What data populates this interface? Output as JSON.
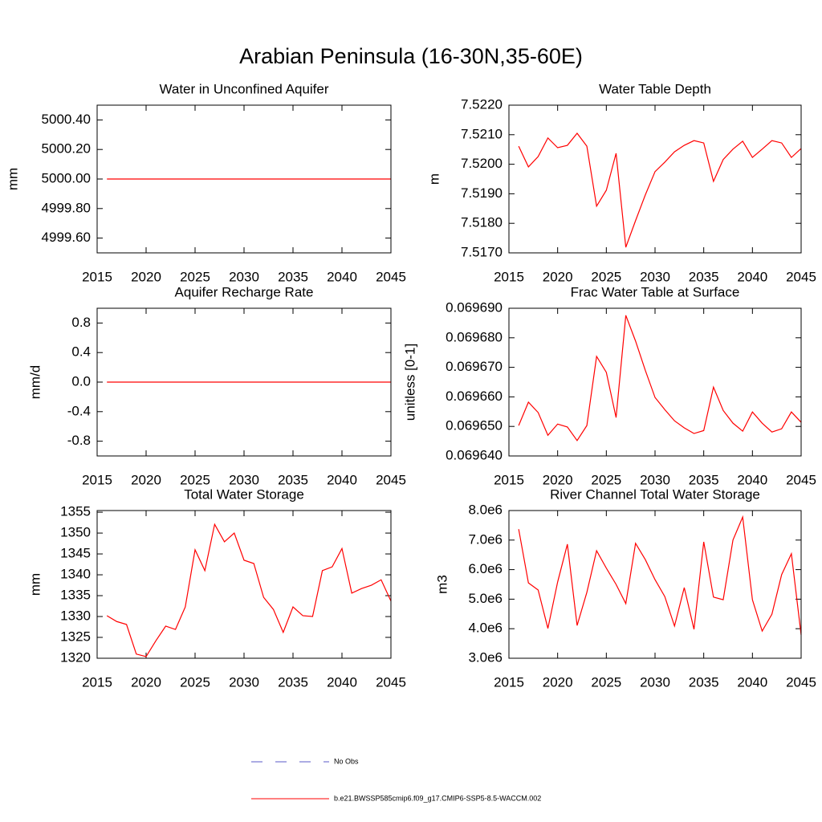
{
  "title": "Arabian Peninsula (16-30N,35-60E)",
  "legend": [
    {
      "label": "No Obs",
      "color": "#5a5ac8",
      "dashed": true
    },
    {
      "label": "b.e21.BWSSP585cmip6.f09_g17.CMIP6-SSP5-8.5-WACCM.002",
      "color": "#ff0000",
      "dashed": false
    }
  ],
  "chart_data": [
    {
      "type": "line",
      "title": "Water in Unconfined Aquifer",
      "y_label": "mm",
      "color": "#ff0000",
      "x": [
        2016,
        2017,
        2018,
        2019,
        2020,
        2021,
        2022,
        2023,
        2024,
        2025,
        2026,
        2027,
        2028,
        2029,
        2030,
        2031,
        2032,
        2033,
        2034,
        2035,
        2036,
        2037,
        2038,
        2039,
        2040,
        2041,
        2042,
        2043,
        2044,
        2045
      ],
      "values": [
        5000,
        5000,
        5000,
        5000,
        5000,
        5000,
        5000,
        5000,
        5000,
        5000,
        5000,
        5000,
        5000,
        5000,
        5000,
        5000,
        5000,
        5000,
        5000,
        5000,
        5000,
        5000,
        5000,
        5000,
        5000,
        5000,
        5000,
        5000,
        5000,
        5000
      ],
      "xlim": [
        2015,
        2045
      ],
      "xticks": [
        2015,
        2020,
        2025,
        2030,
        2035,
        2040,
        2045
      ],
      "ylim": [
        4999.5,
        5000.5
      ],
      "yticks": [
        {
          "value": 4999.6,
          "label": "4999.60"
        },
        {
          "value": 4999.8,
          "label": "4999.80"
        },
        {
          "value": 5000,
          "label": "5000.00"
        },
        {
          "value": 5000.2,
          "label": "5000.20"
        },
        {
          "value": 5000.4,
          "label": "5000.40"
        }
      ]
    },
    {
      "type": "line",
      "title": "Water Table Depth",
      "y_label": "m",
      "color": "#ff0000",
      "x": [
        2016,
        2017,
        2018,
        2019,
        2020,
        2021,
        2022,
        2023,
        2024,
        2025,
        2026,
        2027,
        2028,
        2029,
        2030,
        2031,
        2032,
        2033,
        2034,
        2035,
        2036,
        2037,
        2038,
        2039,
        2040,
        2041,
        2042,
        2043,
        2044,
        2045
      ],
      "values": [
        7.52061,
        7.51991,
        7.52026,
        7.52089,
        7.52056,
        7.52064,
        7.52105,
        7.52061,
        7.51858,
        7.51912,
        7.52037,
        7.51719,
        7.51809,
        7.51896,
        7.51975,
        7.52007,
        7.52042,
        7.52064,
        7.5208,
        7.52072,
        7.51942,
        7.52016,
        7.52051,
        7.52078,
        7.52023,
        7.52051,
        7.5208,
        7.52072,
        7.52023,
        7.52053
      ],
      "xlim": [
        2015,
        2045
      ],
      "xticks": [
        2015,
        2020,
        2025,
        2030,
        2035,
        2040,
        2045
      ],
      "ylim": [
        7.517,
        7.522
      ],
      "yticks": [
        {
          "value": 7.517,
          "label": "7.5170"
        },
        {
          "value": 7.518,
          "label": "7.5180"
        },
        {
          "value": 7.519,
          "label": "7.5190"
        },
        {
          "value": 7.52,
          "label": "7.5200"
        },
        {
          "value": 7.521,
          "label": "7.5210"
        },
        {
          "value": 7.522,
          "label": "7.5220"
        }
      ]
    },
    {
      "type": "line",
      "title": "Aquifer Recharge Rate",
      "y_label": "mm/d",
      "color": "#ff0000",
      "x": [
        2016,
        2017,
        2018,
        2019,
        2020,
        2021,
        2022,
        2023,
        2024,
        2025,
        2026,
        2027,
        2028,
        2029,
        2030,
        2031,
        2032,
        2033,
        2034,
        2035,
        2036,
        2037,
        2038,
        2039,
        2040,
        2041,
        2042,
        2043,
        2044,
        2045
      ],
      "values": [
        0,
        0,
        0,
        0,
        0,
        0,
        0,
        0,
        0,
        0,
        0,
        0,
        0,
        0,
        0,
        0,
        0,
        0,
        0,
        0,
        0,
        0,
        0,
        0,
        0,
        0,
        0,
        0,
        0,
        0
      ],
      "xlim": [
        2015,
        2045
      ],
      "xticks": [
        2015,
        2020,
        2025,
        2030,
        2035,
        2040,
        2045
      ],
      "ylim": [
        -1,
        1
      ],
      "yticks": [
        -0.8,
        -0.4,
        {
          "value": 0,
          "label": "0.0"
        },
        0.4,
        0.8
      ]
    },
    {
      "type": "line",
      "title": "Frac Water Table at Surface",
      "y_label": "unitless [0-1]",
      "color": "#ff0000",
      "x": [
        2016,
        2017,
        2018,
        2019,
        2020,
        2021,
        2022,
        2023,
        2024,
        2025,
        2026,
        2027,
        2028,
        2029,
        2030,
        2031,
        2032,
        2033,
        2034,
        2035,
        2036,
        2037,
        2038,
        2039,
        2040,
        2041,
        2042,
        2043,
        2044,
        2045
      ],
      "values": [
        0.0696503,
        0.0696582,
        0.0696547,
        0.069647,
        0.0696508,
        0.0696498,
        0.0696452,
        0.0696503,
        0.0696737,
        0.0696683,
        0.069653,
        0.0696876,
        0.0696789,
        0.069669,
        0.0696598,
        0.0696557,
        0.0696519,
        0.0696495,
        0.0696476,
        0.0696486,
        0.0696633,
        0.0696554,
        0.0696511,
        0.0696484,
        0.0696549,
        0.0696511,
        0.0696481,
        0.0696492,
        0.0696549,
        0.0696514
      ],
      "xlim": [
        2015,
        2045
      ],
      "xticks": [
        2015,
        2020,
        2025,
        2030,
        2035,
        2040,
        2045
      ],
      "ylim": [
        0.06964,
        0.06969
      ],
      "yticks": [
        {
          "value": 0.06964,
          "label": "0.069640"
        },
        {
          "value": 0.06965,
          "label": "0.069650"
        },
        {
          "value": 0.06966,
          "label": "0.069660"
        },
        {
          "value": 0.06967,
          "label": "0.069670"
        },
        {
          "value": 0.06968,
          "label": "0.069680"
        },
        {
          "value": 0.06969,
          "label": "0.069690"
        }
      ]
    },
    {
      "type": "line",
      "title": "Total Water Storage",
      "y_label": "mm",
      "color": "#ff0000",
      "x": [
        2016,
        2017,
        2018,
        2019,
        2020,
        2021,
        2022,
        2023,
        2024,
        2025,
        2026,
        2027,
        2028,
        2029,
        2030,
        2031,
        2032,
        2033,
        2034,
        2035,
        2036,
        2037,
        2038,
        2039,
        2040,
        2041,
        2042,
        2043,
        2044,
        2045
      ],
      "values": [
        1330.2,
        1328.8,
        1328.1,
        1321,
        1320.4,
        1324.2,
        1327.7,
        1326.9,
        1332.3,
        1346,
        1341,
        1352.1,
        1347.9,
        1350,
        1343.5,
        1342.7,
        1334.6,
        1331.7,
        1326.2,
        1332.3,
        1330.2,
        1330,
        1341,
        1341.9,
        1346.3,
        1335.6,
        1336.7,
        1337.5,
        1338.8,
        1333.7
      ],
      "xlim": [
        2015,
        2045
      ],
      "xticks": [
        2015,
        2020,
        2025,
        2030,
        2035,
        2040,
        2045
      ],
      "ylim": [
        1320,
        1355.4
      ],
      "yticks": [
        1320,
        1325,
        1330,
        1335,
        1340,
        1345,
        1350,
        1355
      ]
    },
    {
      "type": "line",
      "title": "River Channel Total Water Storage",
      "y_label": "m3",
      "color": "#ff0000",
      "x": [
        2016,
        2017,
        2018,
        2019,
        2020,
        2021,
        2022,
        2023,
        2024,
        2025,
        2026,
        2027,
        2028,
        2029,
        2030,
        2031,
        2032,
        2033,
        2034,
        2035,
        2036,
        2037,
        2038,
        2039,
        2040,
        2041,
        2042,
        2043,
        2044,
        2045
      ],
      "values": [
        7370000,
        5550000,
        5310000,
        4010000,
        5580000,
        6860000,
        4110000,
        5230000,
        6640000,
        6050000,
        5500000,
        4850000,
        6890000,
        6340000,
        5660000,
        5090000,
        4090000,
        5390000,
        3980000,
        6940000,
        5070000,
        4980000,
        7000000,
        7780000,
        4980000,
        3920000,
        4490000,
        5830000,
        6540000,
        3790000
      ],
      "xlim": [
        2015,
        2045
      ],
      "xticks": [
        2015,
        2020,
        2025,
        2030,
        2035,
        2040,
        2045
      ],
      "ylim": [
        3000000,
        8000000
      ],
      "yticks": [
        {
          "value": 3000000,
          "label": "3.0e6"
        },
        {
          "value": 4000000,
          "label": "4.0e6"
        },
        {
          "value": 5000000,
          "label": "5.0e6"
        },
        {
          "value": 6000000,
          "label": "6.0e6"
        },
        {
          "value": 7000000,
          "label": "7.0e6"
        },
        {
          "value": 8000000,
          "label": "8.0e6"
        }
      ]
    }
  ]
}
